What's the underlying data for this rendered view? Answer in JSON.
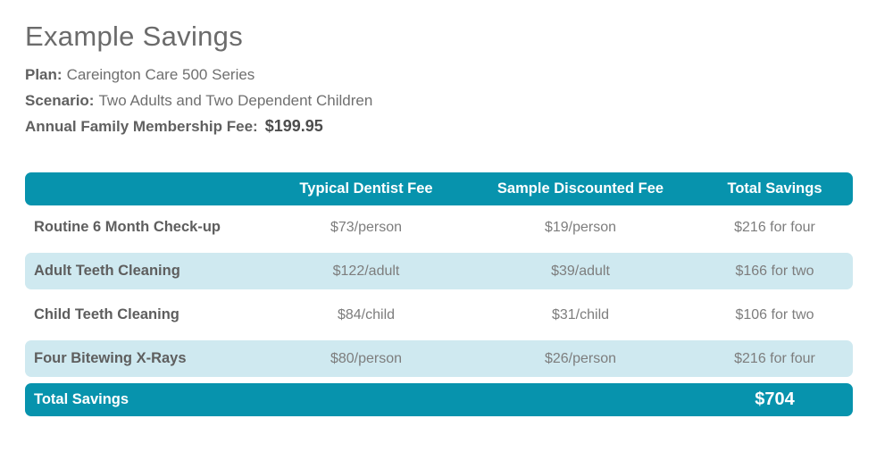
{
  "header": {
    "title": "Example Savings",
    "plan_label": "Plan:",
    "plan_value": "Careington Care 500 Series",
    "scenario_label": "Scenario:",
    "scenario_value": "Two Adults and Two Dependent Children",
    "fee_label": "Annual Family Membership Fee:",
    "fee_value": "$199.95"
  },
  "table": {
    "columns": [
      "",
      "Typical Dentist Fee",
      "Sample Discounted Fee",
      "Total Savings"
    ],
    "rows": [
      {
        "label": "Routine 6 Month Check-up",
        "typical_fee": "$73/person",
        "discounted_fee": "$19/person",
        "total_savings": "$216 for four"
      },
      {
        "label": "Adult Teeth Cleaning",
        "typical_fee": "$122/adult",
        "discounted_fee": "$39/adult",
        "total_savings": "$166 for two"
      },
      {
        "label": "Child Teeth Cleaning",
        "typical_fee": "$84/child",
        "discounted_fee": "$31/child",
        "total_savings": "$106 for two"
      },
      {
        "label": "Four Bitewing X-Rays",
        "typical_fee": "$80/person",
        "discounted_fee": "$26/person",
        "total_savings": "$216 for four"
      }
    ],
    "footer": {
      "label": "Total Savings",
      "value": "$704"
    }
  },
  "colors": {
    "teal": "#0793ad",
    "light_blue": "#cfe9f0",
    "title_gray": "#6b6b6b"
  }
}
